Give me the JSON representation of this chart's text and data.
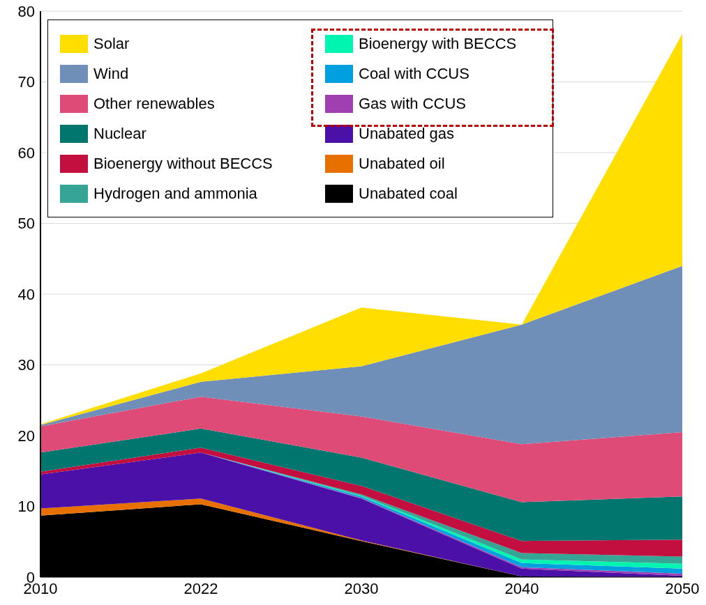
{
  "chart_data": {
    "type": "area",
    "stacked": true,
    "categories": [
      "2010",
      "2022",
      "2030",
      "2040",
      "2050"
    ],
    "ylim": [
      0,
      80
    ],
    "yticks": [
      0,
      10,
      20,
      30,
      40,
      50,
      60,
      70,
      80
    ],
    "grid": "y",
    "legend": "top left",
    "series": [
      {
        "name": "Unabated coal",
        "color": "#000000",
        "values": [
          8.7,
          10.3,
          5.1,
          0.1,
          0
        ]
      },
      {
        "name": "Unabated oil",
        "color": "#e87000",
        "values": [
          1.0,
          0.8,
          0.1,
          0,
          0
        ]
      },
      {
        "name": "Unabated gas",
        "color": "#4a10a8",
        "values": [
          4.8,
          6.5,
          5.9,
          1.1,
          0.2
        ]
      },
      {
        "name": "Gas with CCUS",
        "color": "#a040b0",
        "values": [
          0,
          0,
          0.1,
          0.2,
          0.3
        ]
      },
      {
        "name": "Coal with CCUS",
        "color": "#00a0e0",
        "values": [
          0,
          0,
          0.2,
          0.6,
          0.7
        ]
      },
      {
        "name": "Bioenergy with BECCS",
        "color": "#00f5b0",
        "values": [
          0,
          0,
          0.1,
          0.5,
          0.7
        ]
      },
      {
        "name": "Hydrogen and ammonia",
        "color": "#36a596",
        "values": [
          0,
          0,
          0.2,
          0.9,
          1.0
        ]
      },
      {
        "name": "Bioenergy without BECCS",
        "color": "#c20f3f",
        "values": [
          0.4,
          0.7,
          1.2,
          1.7,
          2.4
        ]
      },
      {
        "name": "Nuclear",
        "color": "#00766e",
        "values": [
          2.7,
          2.7,
          4.0,
          5.5,
          6.1
        ]
      },
      {
        "name": "Other renewables",
        "color": "#df4b77",
        "values": [
          3.7,
          4.5,
          5.8,
          8.2,
          9.1
        ]
      },
      {
        "name": "Wind",
        "color": "#6f8eb8",
        "values": [
          0.2,
          2.1,
          7.1,
          16.9,
          23.5
        ]
      },
      {
        "name": "Solar",
        "color": "#ffde00",
        "values": [
          0.1,
          1.2,
          8.3,
          null,
          32.8
        ]
      }
    ]
  }
}
